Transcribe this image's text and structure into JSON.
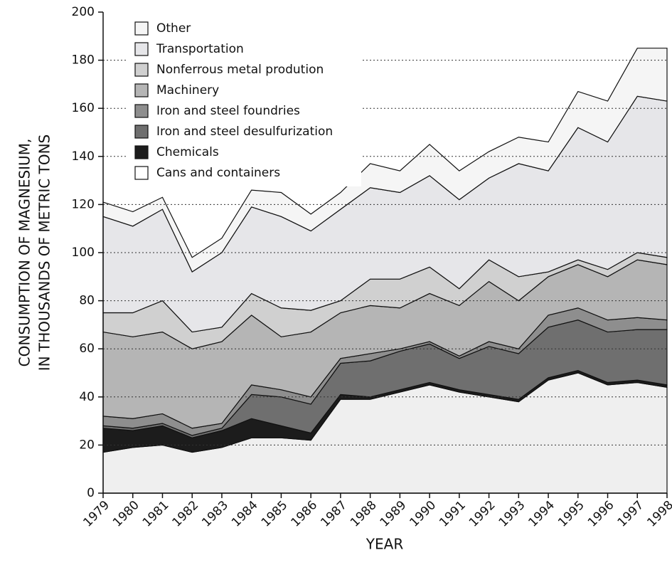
{
  "chart_data": {
    "type": "stacked_area",
    "y_label_lines": [
      "CONSUMPTION OF MAGNESIUM,",
      "IN THOUSANDS OF METRIC TONS"
    ],
    "x_label": "YEAR",
    "categories": [
      "1979",
      "1980",
      "1981",
      "1982",
      "1983",
      "1984",
      "1985",
      "1986",
      "1987",
      "1988",
      "1989",
      "1990",
      "1991",
      "1992",
      "1993",
      "1994",
      "1995",
      "1996",
      "1997",
      "1998"
    ],
    "ylim": [
      0,
      200
    ],
    "yticks": [
      0,
      20,
      40,
      60,
      80,
      100,
      120,
      140,
      160,
      180,
      200
    ],
    "grid": true,
    "series": [
      {
        "name": "Cans and containers",
        "color": "#efefef",
        "values": [
          17,
          19,
          20,
          17,
          19,
          23,
          23,
          22,
          39,
          39,
          42,
          45,
          42,
          40,
          38,
          47,
          50,
          45,
          46,
          44
        ]
      },
      {
        "name": "Chemicals",
        "color": "#1c1c1c",
        "values": [
          10,
          7,
          8,
          6,
          7,
          8,
          5,
          3,
          2,
          1,
          1,
          1,
          1,
          1,
          1,
          1,
          1,
          1,
          1,
          1
        ]
      },
      {
        "name": "Iron and steel desulfurization",
        "color": "#6f6f6f",
        "values": [
          1,
          1,
          1,
          1,
          1,
          10,
          12,
          12,
          13,
          15,
          16,
          16,
          13,
          20,
          19,
          21,
          21,
          21,
          21,
          23
        ]
      },
      {
        "name": "Iron and steel foundries",
        "color": "#8e8e8e",
        "values": [
          4,
          4,
          4,
          3,
          2,
          4,
          3,
          3,
          2,
          3,
          1,
          1,
          1,
          2,
          2,
          5,
          5,
          5,
          5,
          4
        ]
      },
      {
        "name": "Machinery",
        "color": "#b5b5b5",
        "values": [
          35,
          34,
          34,
          33,
          34,
          29,
          22,
          27,
          19,
          20,
          17,
          20,
          21,
          25,
          20,
          16,
          18,
          18,
          24,
          23
        ]
      },
      {
        "name": "Nonferrous metal prodution",
        "color": "#d0d0d0",
        "values": [
          8,
          10,
          13,
          7,
          6,
          9,
          12,
          9,
          5,
          11,
          12,
          11,
          7,
          9,
          10,
          2,
          2,
          3,
          3,
          3
        ]
      },
      {
        "name": "Transportation",
        "color": "#e6e6e9",
        "values": [
          40,
          36,
          38,
          25,
          31,
          36,
          38,
          33,
          38,
          38,
          36,
          38,
          37,
          34,
          47,
          42,
          55,
          53,
          65,
          65
        ]
      },
      {
        "name": "Other",
        "color": "#f5f5f5",
        "values": [
          6,
          6,
          5,
          6,
          6,
          7,
          10,
          7,
          7,
          10,
          9,
          13,
          12,
          11,
          11,
          12,
          15,
          17,
          20,
          22
        ]
      }
    ]
  }
}
